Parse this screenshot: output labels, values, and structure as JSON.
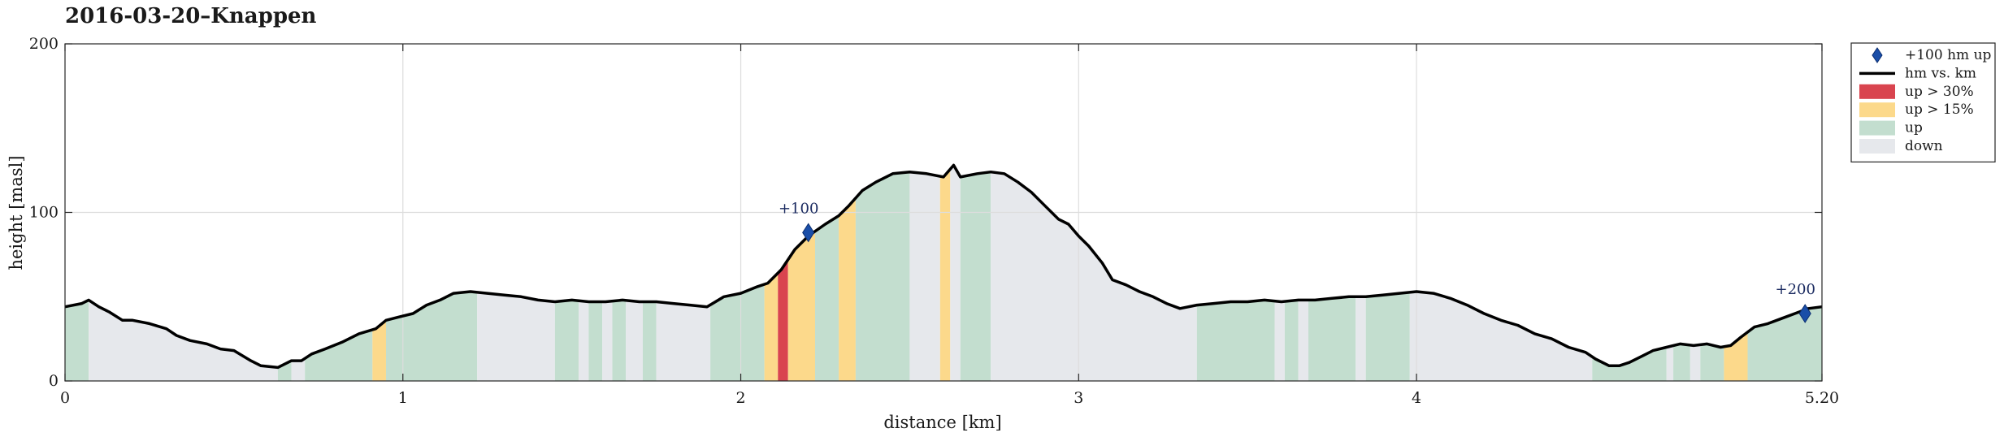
{
  "chart_data": {
    "type": "area",
    "title": "2016-03-20–Knappen",
    "xlabel": "distance [km]",
    "ylabel": "height [masl]",
    "xlim": [
      0,
      5.2
    ],
    "ylim": [
      0,
      200
    ],
    "xticks": [
      0,
      1,
      2,
      3,
      4,
      5.2
    ],
    "xtick_labels": [
      "0",
      "1",
      "2",
      "3",
      "4",
      "5.20"
    ],
    "yticks": [
      0,
      100,
      200
    ],
    "ytick_labels": [
      "0",
      "100",
      "200"
    ],
    "grid": true,
    "legend_position": "outside-right-top",
    "series": [
      {
        "name": "hm vs. km",
        "x": [
          0,
          0.05,
          0.07,
          0.1,
          0.13,
          0.17,
          0.2,
          0.25,
          0.3,
          0.33,
          0.37,
          0.42,
          0.46,
          0.5,
          0.55,
          0.58,
          0.63,
          0.67,
          0.7,
          0.73,
          0.77,
          0.82,
          0.87,
          0.92,
          0.95,
          0.99,
          1.03,
          1.07,
          1.11,
          1.15,
          1.2,
          1.25,
          1.3,
          1.35,
          1.4,
          1.45,
          1.5,
          1.55,
          1.6,
          1.65,
          1.7,
          1.75,
          1.8,
          1.85,
          1.9,
          1.95,
          2.0,
          2.05,
          2.08,
          2.12,
          2.16,
          2.2,
          2.25,
          2.29,
          2.32,
          2.36,
          2.4,
          2.45,
          2.5,
          2.55,
          2.6,
          2.63,
          2.65,
          2.7,
          2.74,
          2.78,
          2.82,
          2.86,
          2.9,
          2.94,
          2.97,
          3.0,
          3.03,
          3.07,
          3.1,
          3.14,
          3.18,
          3.22,
          3.26,
          3.3,
          3.35,
          3.4,
          3.45,
          3.5,
          3.55,
          3.6,
          3.65,
          3.7,
          3.75,
          3.8,
          3.85,
          3.9,
          3.95,
          4.0,
          4.05,
          4.1,
          4.15,
          4.2,
          4.25,
          4.3,
          4.35,
          4.4,
          4.45,
          4.5,
          4.53,
          4.57,
          4.6,
          4.63,
          4.67,
          4.7,
          4.74,
          4.78,
          4.82,
          4.86,
          4.9,
          4.93,
          4.96,
          5.0,
          5.04,
          5.08,
          5.12,
          5.16,
          5.2
        ],
        "y": [
          44,
          46,
          48,
          44,
          41,
          36,
          36,
          34,
          31,
          27,
          24,
          22,
          19,
          18,
          12,
          9,
          8,
          12,
          12,
          16,
          19,
          23,
          28,
          31,
          36,
          38,
          40,
          45,
          48,
          52,
          53,
          52,
          51,
          50,
          48,
          47,
          48,
          47,
          47,
          48,
          47,
          47,
          46,
          45,
          44,
          50,
          52,
          56,
          58,
          66,
          78,
          86,
          93,
          98,
          104,
          113,
          118,
          123,
          124,
          123,
          121,
          128,
          121,
          123,
          124,
          123,
          118,
          112,
          104,
          96,
          93,
          86,
          80,
          70,
          60,
          57,
          53,
          50,
          46,
          43,
          45,
          46,
          47,
          47,
          48,
          47,
          48,
          48,
          49,
          50,
          50,
          51,
          52,
          53,
          52,
          49,
          45,
          40,
          36,
          33,
          28,
          25,
          20,
          17,
          13,
          9,
          9,
          11,
          15,
          18,
          20,
          22,
          21,
          22,
          20,
          21,
          26,
          32,
          34,
          37,
          40,
          43,
          44
        ]
      }
    ],
    "bands": [
      {
        "x0": 0.0,
        "x1": 0.07,
        "class": "up"
      },
      {
        "x0": 0.07,
        "x1": 0.63,
        "class": "down"
      },
      {
        "x0": 0.63,
        "x1": 0.67,
        "class": "up"
      },
      {
        "x0": 0.67,
        "x1": 0.71,
        "class": "down"
      },
      {
        "x0": 0.71,
        "x1": 0.91,
        "class": "up"
      },
      {
        "x0": 0.91,
        "x1": 0.95,
        "class": "up > 15%"
      },
      {
        "x0": 0.95,
        "x1": 1.22,
        "class": "up"
      },
      {
        "x0": 1.22,
        "x1": 1.45,
        "class": "down"
      },
      {
        "x0": 1.45,
        "x1": 1.52,
        "class": "up"
      },
      {
        "x0": 1.52,
        "x1": 1.55,
        "class": "down"
      },
      {
        "x0": 1.55,
        "x1": 1.59,
        "class": "up"
      },
      {
        "x0": 1.59,
        "x1": 1.62,
        "class": "down"
      },
      {
        "x0": 1.62,
        "x1": 1.66,
        "class": "up"
      },
      {
        "x0": 1.66,
        "x1": 1.71,
        "class": "down"
      },
      {
        "x0": 1.71,
        "x1": 1.75,
        "class": "up"
      },
      {
        "x0": 1.75,
        "x1": 1.91,
        "class": "down"
      },
      {
        "x0": 1.91,
        "x1": 2.07,
        "class": "up"
      },
      {
        "x0": 2.07,
        "x1": 2.11,
        "class": "up > 15%"
      },
      {
        "x0": 2.11,
        "x1": 2.14,
        "class": "up > 30%"
      },
      {
        "x0": 2.14,
        "x1": 2.22,
        "class": "up > 15%"
      },
      {
        "x0": 2.22,
        "x1": 2.29,
        "class": "up"
      },
      {
        "x0": 2.29,
        "x1": 2.34,
        "class": "up > 15%"
      },
      {
        "x0": 2.34,
        "x1": 2.5,
        "class": "up"
      },
      {
        "x0": 2.5,
        "x1": 2.59,
        "class": "down"
      },
      {
        "x0": 2.59,
        "x1": 2.62,
        "class": "up > 15%"
      },
      {
        "x0": 2.62,
        "x1": 2.65,
        "class": "down"
      },
      {
        "x0": 2.65,
        "x1": 2.74,
        "class": "up"
      },
      {
        "x0": 2.74,
        "x1": 3.35,
        "class": "down"
      },
      {
        "x0": 3.35,
        "x1": 3.58,
        "class": "up"
      },
      {
        "x0": 3.58,
        "x1": 3.61,
        "class": "down"
      },
      {
        "x0": 3.61,
        "x1": 3.65,
        "class": "up"
      },
      {
        "x0": 3.65,
        "x1": 3.68,
        "class": "down"
      },
      {
        "x0": 3.68,
        "x1": 3.82,
        "class": "up"
      },
      {
        "x0": 3.82,
        "x1": 3.85,
        "class": "down"
      },
      {
        "x0": 3.85,
        "x1": 3.98,
        "class": "up"
      },
      {
        "x0": 3.98,
        "x1": 4.52,
        "class": "down"
      },
      {
        "x0": 4.52,
        "x1": 4.74,
        "class": "up"
      },
      {
        "x0": 4.74,
        "x1": 4.76,
        "class": "down"
      },
      {
        "x0": 4.76,
        "x1": 4.81,
        "class": "up"
      },
      {
        "x0": 4.81,
        "x1": 4.84,
        "class": "down"
      },
      {
        "x0": 4.84,
        "x1": 4.91,
        "class": "up"
      },
      {
        "x0": 4.91,
        "x1": 4.98,
        "class": "up > 15%"
      },
      {
        "x0": 4.98,
        "x1": 5.2,
        "class": "up"
      }
    ],
    "markers": [
      {
        "x": 2.2,
        "y": 88,
        "label": "+100"
      },
      {
        "x": 5.15,
        "y": 40,
        "label": "+200"
      }
    ],
    "legend": [
      {
        "key": "marker",
        "label": "+100 hm up"
      },
      {
        "key": "line",
        "label": "hm vs. km"
      },
      {
        "key": "up > 30%",
        "label": "up > 30%"
      },
      {
        "key": "up > 15%",
        "label": "up > 15%"
      },
      {
        "key": "up",
        "label": "up"
      },
      {
        "key": "down",
        "label": "down"
      }
    ],
    "colors": {
      "line": "#000000",
      "up > 30%": "#d9444f",
      "up > 15%": "#fcd98b",
      "up": "#c3decf",
      "down": "#e6e8ec",
      "marker": "#1a4ea8",
      "grid": "#dddddd"
    }
  }
}
